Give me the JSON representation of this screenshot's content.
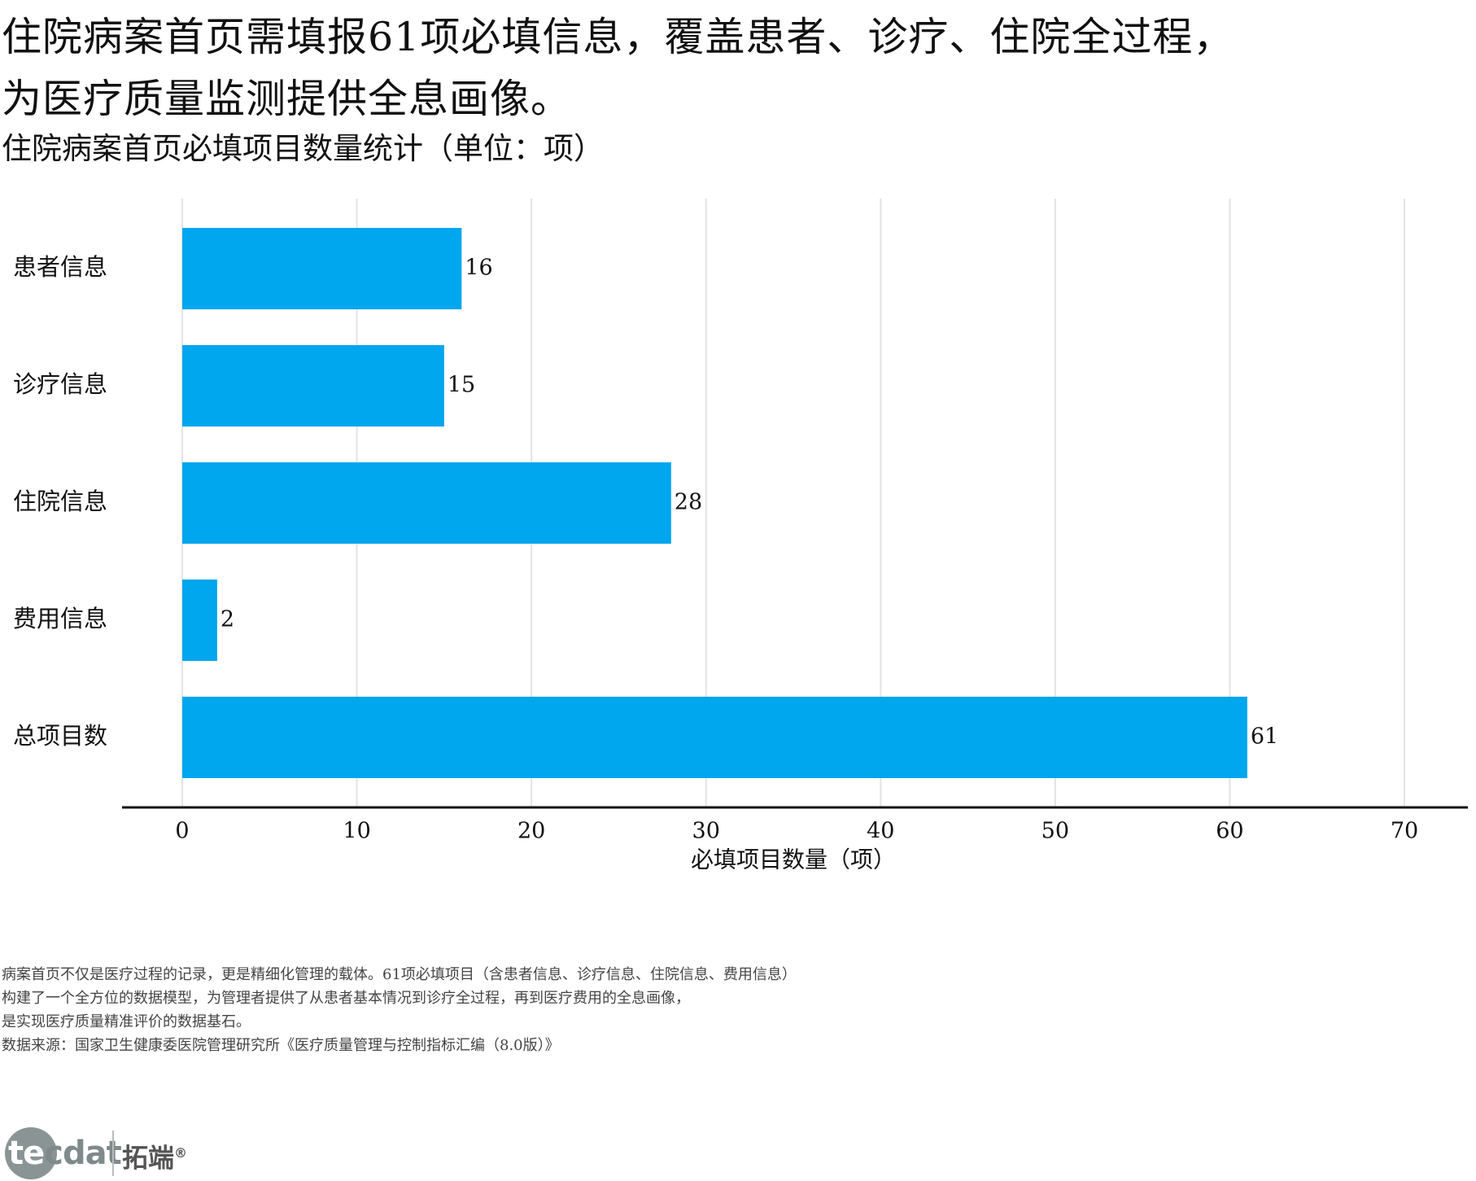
{
  "headline": {
    "line1": "住院病案首页需填报61项必填信息，覆盖患者、诊疗、住院全过程，",
    "line2": "为医疗质量监测提供全息画像。"
  },
  "subtitle": "住院病案首页必填项目数量统计（单位：项）",
  "chart_data": {
    "type": "bar",
    "orientation": "horizontal",
    "categories": [
      "患者信息",
      "诊疗信息",
      "住院信息",
      "费用信息",
      "总项目数"
    ],
    "values": [
      16,
      15,
      28,
      2,
      61
    ],
    "data_labels": [
      "16",
      "15",
      "28",
      "2",
      "61"
    ],
    "xlabel": "必填项目数量（项）",
    "ylabel": "",
    "xlim": [
      0,
      70
    ],
    "xticks": [
      0,
      10,
      20,
      30,
      40,
      50,
      60,
      70
    ],
    "grid": "vertical",
    "bar_color": "#00a6ee"
  },
  "notes": [
    "病案首页不仅是医疗过程的记录，更是精细化管理的载体。61项必填项目（含患者信息、诊疗信息、住院信息、费用信息）",
    "构建了一个全方位的数据模型，为管理者提供了从患者基本情况到诊疗全过程，再到医疗费用的全息画像，",
    "是实现医疗质量精准评价的数据基石。",
    "数据来源：国家卫生健康委医院管理研究所《医疗质量管理与控制指标汇编（8.0版）》"
  ],
  "logo": {
    "wordmark_te": "te",
    "wordmark_cdat": "cdat",
    "cn_name": "拓端",
    "registered": "®"
  }
}
